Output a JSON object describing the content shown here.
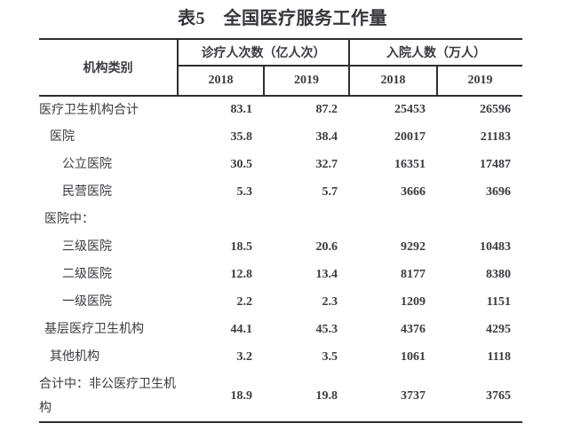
{
  "title": "表5　全国医疗服务工作量",
  "table": {
    "category_header": "机构类别",
    "group_headers": [
      {
        "label": "诊疗人次数（亿人次）"
      },
      {
        "label": "入院人数（万人）"
      }
    ],
    "year_headers": [
      "2018",
      "2019",
      "2018",
      "2019"
    ],
    "rows": [
      {
        "label": "医疗卫生机构合计",
        "indent": 0,
        "visits_2018": "83.1",
        "visits_2019": "87.2",
        "admissions_2018": "25453",
        "admissions_2019": "26596"
      },
      {
        "label": "医院",
        "indent": 1,
        "visits_2018": "35.8",
        "visits_2019": "38.4",
        "admissions_2018": "20017",
        "admissions_2019": "21183"
      },
      {
        "label": "公立医院",
        "indent": 2,
        "visits_2018": "30.5",
        "visits_2019": "32.7",
        "admissions_2018": "16351",
        "admissions_2019": "17487"
      },
      {
        "label": "民营医院",
        "indent": 2,
        "visits_2018": "5.3",
        "visits_2019": "5.7",
        "admissions_2018": "3666",
        "admissions_2019": "3696"
      },
      {
        "label": "医院中：",
        "indent": 0.5,
        "visits_2018": "",
        "visits_2019": "",
        "admissions_2018": "",
        "admissions_2019": ""
      },
      {
        "label": "三级医院",
        "indent": 2,
        "visits_2018": "18.5",
        "visits_2019": "20.6",
        "admissions_2018": "9292",
        "admissions_2019": "10483"
      },
      {
        "label": "二级医院",
        "indent": 2,
        "visits_2018": "12.8",
        "visits_2019": "13.4",
        "admissions_2018": "8177",
        "admissions_2019": "8380"
      },
      {
        "label": "一级医院",
        "indent": 2,
        "visits_2018": "2.2",
        "visits_2019": "2.3",
        "admissions_2018": "1209",
        "admissions_2019": "1151"
      },
      {
        "label": "基层医疗卫生机构",
        "indent": 0.5,
        "visits_2018": "44.1",
        "visits_2019": "45.3",
        "admissions_2018": "4376",
        "admissions_2019": "4295"
      },
      {
        "label": "其他机构",
        "indent": 1,
        "visits_2018": "3.2",
        "visits_2019": "3.5",
        "admissions_2018": "1061",
        "admissions_2019": "1118"
      },
      {
        "label": "合计中：非公医疗卫生机构",
        "indent": 0,
        "visits_2018": "18.9",
        "visits_2019": "19.8",
        "admissions_2018": "3737",
        "admissions_2019": "3765"
      }
    ]
  }
}
